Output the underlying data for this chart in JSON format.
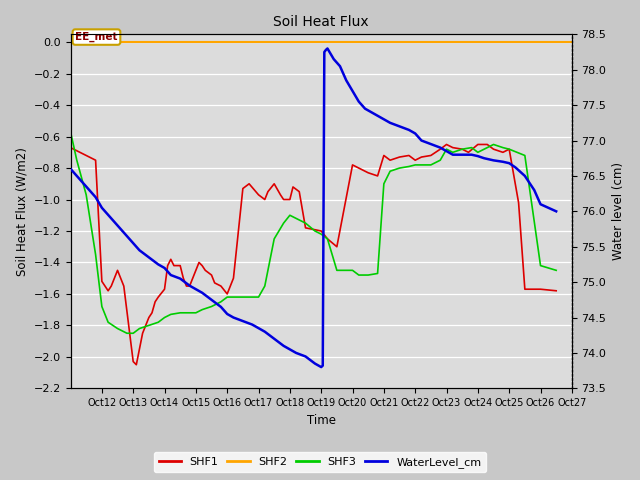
{
  "title": "Soil Heat Flux",
  "xlabel": "Time",
  "ylabel_left": "Soil Heat Flux (W/m2)",
  "ylabel_right": "Water level (cm)",
  "x_labels": [
    "Oct 12",
    "Oct 13",
    "Oct 14",
    "Oct 15",
    "Oct 16",
    "Oct 17",
    "Oct 18",
    "Oct 19",
    "Oct 20",
    "Oct 21",
    "Oct 22",
    "Oct 23",
    "Oct 24",
    "Oct 25",
    "Oct 26",
    "Oct 27"
  ],
  "ylim_left": [
    -2.2,
    0.05
  ],
  "ylim_right": [
    73.5,
    78.5
  ],
  "fig_facecolor": "#c8c8c8",
  "plot_facecolor": "#dcdcdc",
  "annotation_text": "EE_met",
  "annotation_box_color": "#c8a000",
  "annotation_text_color": "#8B0000",
  "shf2_line_color": "#FFA500",
  "shf2_value": 0.0,
  "shf1_color": "#DD0000",
  "shf3_color": "#00CC00",
  "water_color": "#0000DD",
  "shf1_x": [
    11.0,
    11.8,
    12.0,
    12.1,
    12.2,
    12.3,
    12.5,
    12.6,
    12.7,
    13.0,
    13.1,
    13.3,
    13.5,
    13.6,
    13.7,
    13.8,
    14.0,
    14.1,
    14.2,
    14.3,
    14.5,
    14.6,
    14.7,
    14.8,
    15.0,
    15.1,
    15.2,
    15.3,
    15.5,
    15.6,
    15.8,
    16.0,
    16.2,
    16.5,
    16.7,
    17.0,
    17.2,
    17.3,
    17.5,
    17.7,
    17.8,
    18.0,
    18.1,
    18.3,
    18.5,
    19.0,
    19.2,
    19.5,
    20.0,
    20.2,
    20.5,
    20.8,
    21.0,
    21.2,
    21.5,
    21.8,
    22.0,
    22.2,
    22.5,
    22.8,
    23.0,
    23.2,
    23.5,
    23.7,
    24.0,
    24.3,
    24.5,
    24.8,
    25.0,
    25.3,
    25.5,
    26.0,
    26.5
  ],
  "shf1_y": [
    -0.67,
    -0.75,
    -1.52,
    -1.55,
    -1.58,
    -1.55,
    -1.45,
    -1.5,
    -1.55,
    -2.03,
    -2.05,
    -1.85,
    -1.75,
    -1.72,
    -1.65,
    -1.62,
    -1.57,
    -1.42,
    -1.38,
    -1.42,
    -1.42,
    -1.5,
    -1.55,
    -1.55,
    -1.45,
    -1.4,
    -1.42,
    -1.45,
    -1.48,
    -1.53,
    -1.55,
    -1.6,
    -1.5,
    -0.93,
    -0.9,
    -0.97,
    -1.0,
    -0.95,
    -0.9,
    -0.97,
    -1.0,
    -1.0,
    -0.92,
    -0.95,
    -1.18,
    -1.2,
    -1.25,
    -1.3,
    -0.78,
    -0.8,
    -0.83,
    -0.85,
    -0.72,
    -0.75,
    -0.73,
    -0.72,
    -0.75,
    -0.73,
    -0.72,
    -0.68,
    -0.65,
    -0.67,
    -0.68,
    -0.7,
    -0.65,
    -0.65,
    -0.68,
    -0.7,
    -0.68,
    -1.02,
    -1.57,
    -1.57,
    -1.58
  ],
  "shf3_x": [
    11.0,
    11.2,
    11.5,
    11.8,
    12.0,
    12.2,
    12.5,
    12.8,
    13.0,
    13.2,
    13.5,
    13.8,
    14.0,
    14.2,
    14.5,
    14.8,
    15.0,
    15.2,
    15.5,
    15.8,
    16.0,
    16.2,
    16.5,
    16.8,
    17.0,
    17.2,
    17.5,
    17.8,
    18.0,
    18.2,
    18.5,
    18.8,
    19.0,
    19.2,
    19.5,
    19.8,
    20.0,
    20.2,
    20.5,
    20.8,
    21.0,
    21.2,
    21.5,
    21.8,
    22.0,
    22.2,
    22.5,
    22.8,
    23.0,
    23.2,
    23.5,
    23.8,
    24.0,
    24.2,
    24.5,
    24.8,
    25.0,
    25.5,
    26.0,
    26.5
  ],
  "shf3_y": [
    -0.57,
    -0.75,
    -0.97,
    -1.35,
    -1.68,
    -1.78,
    -1.82,
    -1.85,
    -1.85,
    -1.82,
    -1.8,
    -1.78,
    -1.75,
    -1.73,
    -1.72,
    -1.72,
    -1.72,
    -1.7,
    -1.68,
    -1.65,
    -1.62,
    -1.62,
    -1.62,
    -1.62,
    -1.62,
    -1.55,
    -1.25,
    -1.15,
    -1.1,
    -1.12,
    -1.15,
    -1.2,
    -1.22,
    -1.25,
    -1.45,
    -1.45,
    -1.45,
    -1.48,
    -1.48,
    -1.47,
    -0.9,
    -0.82,
    -0.8,
    -0.79,
    -0.78,
    -0.78,
    -0.78,
    -0.75,
    -0.68,
    -0.7,
    -0.68,
    -0.67,
    -0.7,
    -0.68,
    -0.65,
    -0.67,
    -0.68,
    -0.72,
    -1.42,
    -1.45
  ],
  "water_x": [
    11.0,
    11.2,
    11.5,
    11.8,
    12.0,
    12.2,
    12.5,
    12.8,
    13.0,
    13.2,
    13.5,
    13.8,
    14.0,
    14.2,
    14.5,
    14.8,
    15.0,
    15.2,
    15.5,
    15.8,
    16.0,
    16.2,
    16.5,
    16.8,
    17.0,
    17.2,
    17.5,
    17.8,
    18.0,
    18.2,
    18.5,
    18.8,
    19.0,
    19.05,
    19.1,
    19.15,
    19.2,
    19.4,
    19.6,
    19.8,
    20.0,
    20.2,
    20.4,
    20.6,
    20.8,
    21.0,
    21.2,
    21.5,
    21.8,
    22.0,
    22.2,
    22.5,
    22.8,
    23.0,
    23.2,
    23.5,
    23.8,
    24.0,
    24.2,
    24.5,
    24.8,
    25.0,
    25.2,
    25.5,
    25.8,
    26.0,
    26.5
  ],
  "water_y": [
    76.6,
    76.5,
    76.35,
    76.2,
    76.05,
    75.95,
    75.8,
    75.65,
    75.55,
    75.45,
    75.35,
    75.25,
    75.2,
    75.1,
    75.05,
    74.95,
    74.9,
    74.85,
    74.75,
    74.65,
    74.55,
    74.5,
    74.45,
    74.4,
    74.35,
    74.3,
    74.2,
    74.1,
    74.05,
    74.0,
    73.95,
    73.85,
    73.8,
    73.82,
    78.25,
    78.28,
    78.3,
    78.15,
    78.05,
    77.85,
    77.7,
    77.55,
    77.45,
    77.4,
    77.35,
    77.3,
    77.25,
    77.2,
    77.15,
    77.1,
    77.0,
    76.95,
    76.9,
    76.85,
    76.8,
    76.8,
    76.8,
    76.78,
    76.75,
    76.72,
    76.7,
    76.68,
    76.62,
    76.5,
    76.3,
    76.1,
    76.0
  ]
}
